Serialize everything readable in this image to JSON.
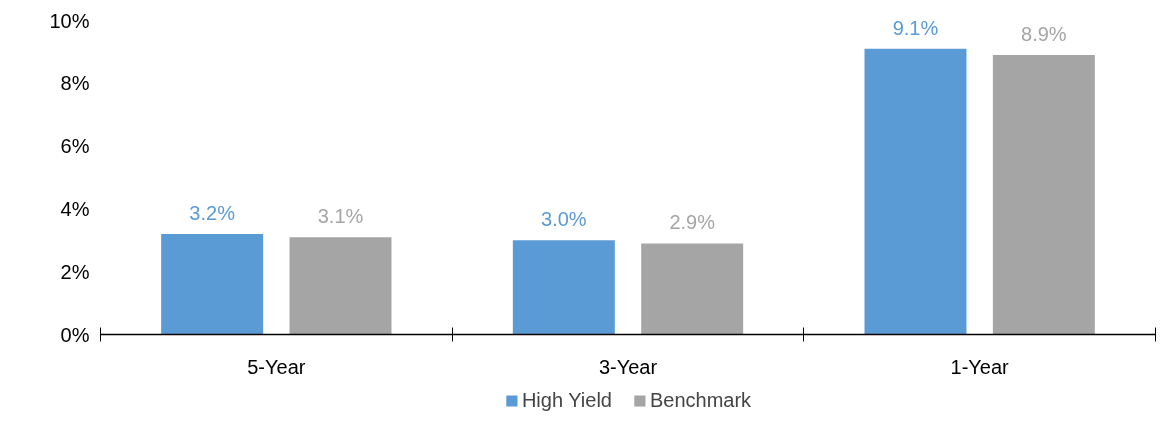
{
  "chart_data": {
    "type": "bar",
    "categories": [
      "5-Year",
      "3-Year",
      "1-Year"
    ],
    "series": [
      {
        "name": "High Yield",
        "color": "#5b9bd5",
        "values": [
          3.2,
          3.0,
          9.1
        ],
        "value_labels": [
          "3.2%",
          "3.0%",
          "9.1%"
        ]
      },
      {
        "name": "Benchmark",
        "color": "#a5a5a5",
        "values": [
          3.1,
          2.9,
          8.9
        ],
        "value_labels": [
          "3.1%",
          "2.9%",
          "8.9%"
        ]
      }
    ],
    "ylim": [
      0,
      10
    ],
    "yticks": [
      {
        "value": 0,
        "label": "0%"
      },
      {
        "value": 2,
        "label": "2%"
      },
      {
        "value": 4,
        "label": "4%"
      },
      {
        "value": 6,
        "label": "6%"
      },
      {
        "value": 8,
        "label": "8%"
      },
      {
        "value": 10,
        "label": "10%"
      }
    ],
    "data_labels": true,
    "grid": false,
    "legend": "bottom"
  }
}
